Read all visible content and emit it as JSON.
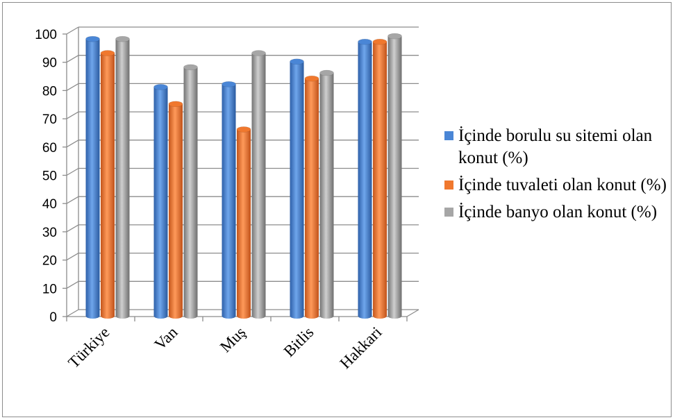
{
  "chart_data": {
    "type": "bar",
    "title": "",
    "xlabel": "",
    "ylabel": "",
    "categories": [
      "Türkiye",
      "Van",
      "Muş",
      "Bitlis",
      "Hakkari"
    ],
    "ylim": [
      0,
      100
    ],
    "yticks": [
      0,
      10,
      20,
      30,
      40,
      50,
      60,
      70,
      80,
      90,
      100
    ],
    "grid": true,
    "legend_position": "right",
    "series": [
      {
        "name": "İçinde borulu su sitemi olan konut (%)",
        "values": [
          97,
          80,
          81,
          89,
          96
        ],
        "color": "#4a86d6"
      },
      {
        "name": "İçinde tuvaleti olan konut (%)",
        "values": [
          92,
          74,
          65,
          83,
          96
        ],
        "color": "#f0782e"
      },
      {
        "name": "İçinde banyo olan konut (%)",
        "values": [
          97,
          87,
          92,
          85,
          98
        ],
        "color": "#a6a6a6"
      }
    ]
  }
}
